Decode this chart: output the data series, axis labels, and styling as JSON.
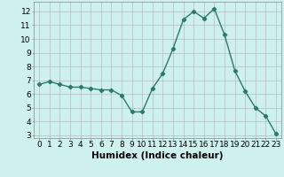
{
  "x": [
    0,
    1,
    2,
    3,
    4,
    5,
    6,
    7,
    8,
    9,
    10,
    11,
    12,
    13,
    14,
    15,
    16,
    17,
    18,
    19,
    20,
    21,
    22,
    23
  ],
  "y": [
    6.7,
    6.9,
    6.7,
    6.5,
    6.5,
    6.4,
    6.3,
    6.3,
    5.9,
    4.7,
    4.7,
    6.4,
    7.5,
    9.3,
    11.4,
    12.0,
    11.5,
    12.2,
    10.3,
    7.7,
    6.2,
    5.0,
    4.4,
    3.1
  ],
  "line_color": "#2a7a6a",
  "marker": "D",
  "marker_size": 2.2,
  "bg_color": "#cef0ee",
  "grid_color": "#b0b0b0",
  "xlabel": "Humidex (Indice chaleur)",
  "xlim": [
    -0.5,
    23.5
  ],
  "ylim": [
    2.8,
    12.7
  ],
  "yticks": [
    3,
    4,
    5,
    6,
    7,
    8,
    9,
    10,
    11,
    12
  ],
  "font_size": 6.5,
  "xlabel_fontsize": 7.5,
  "line_width": 1.0
}
